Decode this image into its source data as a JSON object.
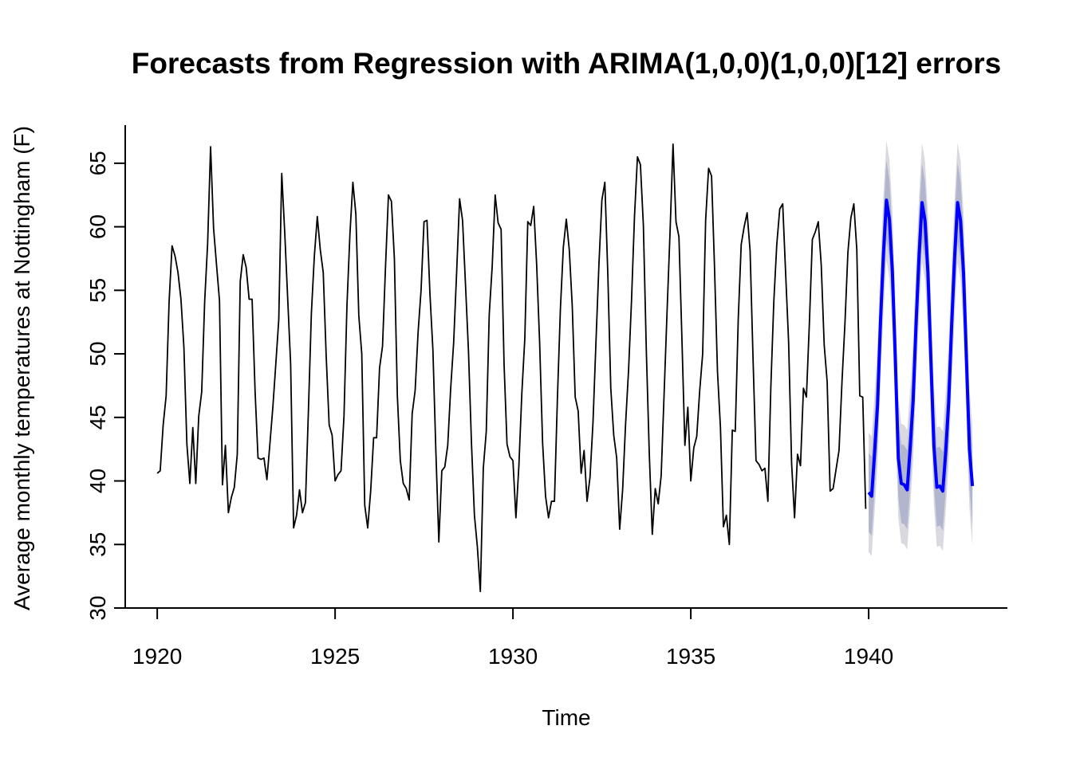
{
  "chart_data": {
    "type": "line",
    "title": "Forecasts from Regression with ARIMA(1,0,0)(1,0,0)[12] errors",
    "xlabel": "Time",
    "ylabel": "Average monthly temperatures at Nottingham (F)",
    "xlim": [
      1919.1,
      1943.9
    ],
    "ylim": [
      30,
      68
    ],
    "xticks": [
      1920,
      1925,
      1930,
      1935,
      1940
    ],
    "yticks": [
      30,
      35,
      40,
      45,
      50,
      55,
      60,
      65
    ],
    "grid": false,
    "legend": "none",
    "series": [
      {
        "kind": "observed",
        "color": "#000000",
        "start": 1920,
        "frequency": 12,
        "values": [
          40.6,
          40.8,
          44.4,
          46.7,
          54.1,
          58.5,
          57.7,
          56.4,
          54.3,
          50.5,
          42.9,
          39.8,
          44.2,
          39.8,
          45.1,
          47.0,
          54.1,
          58.7,
          66.3,
          59.9,
          57.0,
          54.2,
          39.7,
          42.8,
          37.5,
          38.7,
          39.5,
          42.1,
          55.7,
          57.8,
          56.8,
          54.3,
          54.3,
          47.1,
          41.8,
          41.7,
          41.8,
          40.1,
          42.9,
          45.8,
          49.2,
          52.7,
          64.2,
          59.6,
          54.4,
          49.2,
          36.3,
          37.3,
          39.3,
          37.5,
          38.3,
          45.5,
          53.2,
          57.7,
          60.8,
          58.2,
          56.4,
          49.8,
          44.4,
          43.6,
          40.0,
          40.5,
          40.8,
          45.1,
          53.8,
          59.4,
          63.5,
          61.0,
          53.0,
          50.0,
          38.1,
          36.3,
          39.2,
          43.4,
          43.4,
          48.9,
          50.6,
          56.8,
          62.5,
          62.0,
          57.5,
          46.7,
          41.6,
          39.8,
          39.4,
          38.5,
          45.3,
          47.1,
          51.7,
          55.0,
          60.4,
          60.5,
          54.7,
          50.3,
          42.3,
          35.2,
          40.8,
          41.1,
          42.8,
          47.3,
          50.9,
          56.4,
          62.2,
          60.5,
          55.4,
          50.2,
          43.0,
          37.3,
          34.8,
          31.3,
          41.0,
          43.9,
          53.1,
          56.9,
          62.5,
          60.3,
          59.8,
          49.2,
          42.9,
          41.9,
          41.6,
          37.1,
          41.2,
          46.9,
          51.2,
          60.4,
          60.1,
          61.6,
          57.0,
          50.9,
          43.0,
          38.8,
          37.1,
          38.4,
          38.4,
          46.5,
          53.5,
          58.4,
          60.6,
          58.2,
          53.8,
          46.6,
          45.5,
          40.6,
          42.4,
          38.4,
          40.3,
          44.6,
          50.9,
          57.0,
          62.1,
          63.5,
          56.3,
          47.3,
          43.6,
          41.8,
          36.2,
          39.3,
          44.5,
          48.7,
          54.2,
          60.8,
          65.5,
          64.9,
          60.1,
          50.2,
          42.1,
          35.8,
          39.4,
          38.2,
          40.4,
          46.9,
          53.4,
          59.6,
          66.5,
          60.4,
          59.2,
          51.2,
          42.8,
          45.8,
          40.0,
          42.6,
          43.5,
          47.1,
          50.0,
          60.5,
          64.6,
          64.0,
          56.8,
          48.6,
          44.2,
          36.4,
          37.3,
          35.0,
          44.0,
          43.9,
          52.7,
          58.6,
          60.0,
          61.1,
          58.1,
          49.6,
          41.6,
          41.3,
          40.8,
          41.0,
          38.4,
          47.4,
          54.1,
          58.6,
          61.4,
          61.8,
          56.3,
          50.9,
          41.4,
          37.1,
          42.1,
          41.2,
          47.3,
          46.6,
          52.4,
          59.0,
          59.6,
          60.4,
          57.0,
          50.7,
          47.8,
          39.2,
          39.4,
          40.9,
          42.4,
          47.8,
          52.4,
          58.0,
          60.7,
          61.8,
          58.2,
          46.7,
          46.6,
          37.8
        ]
      },
      {
        "kind": "forecast",
        "color": "#0000ff",
        "start": 1940,
        "frequency": 12,
        "values": [
          39.1,
          38.8,
          42.2,
          46.0,
          52.6,
          57.9,
          62.1,
          60.6,
          56.5,
          49.6,
          41.8,
          39.8,
          39.7,
          39.3,
          42.6,
          46.3,
          52.4,
          57.7,
          61.9,
          60.5,
          56.4,
          49.5,
          42.8,
          39.5,
          39.6,
          39.2,
          42.3,
          46.2,
          52.3,
          57.6,
          61.9,
          60.5,
          56.4,
          49.5,
          42.5,
          39.6
        ]
      }
    ],
    "intervals": [
      {
        "level": "80%",
        "color": "#b1b5ce",
        "halfwidth": 3.1
      },
      {
        "level": "95%",
        "color": "#d9d9df",
        "halfwidth": 4.7
      }
    ]
  }
}
